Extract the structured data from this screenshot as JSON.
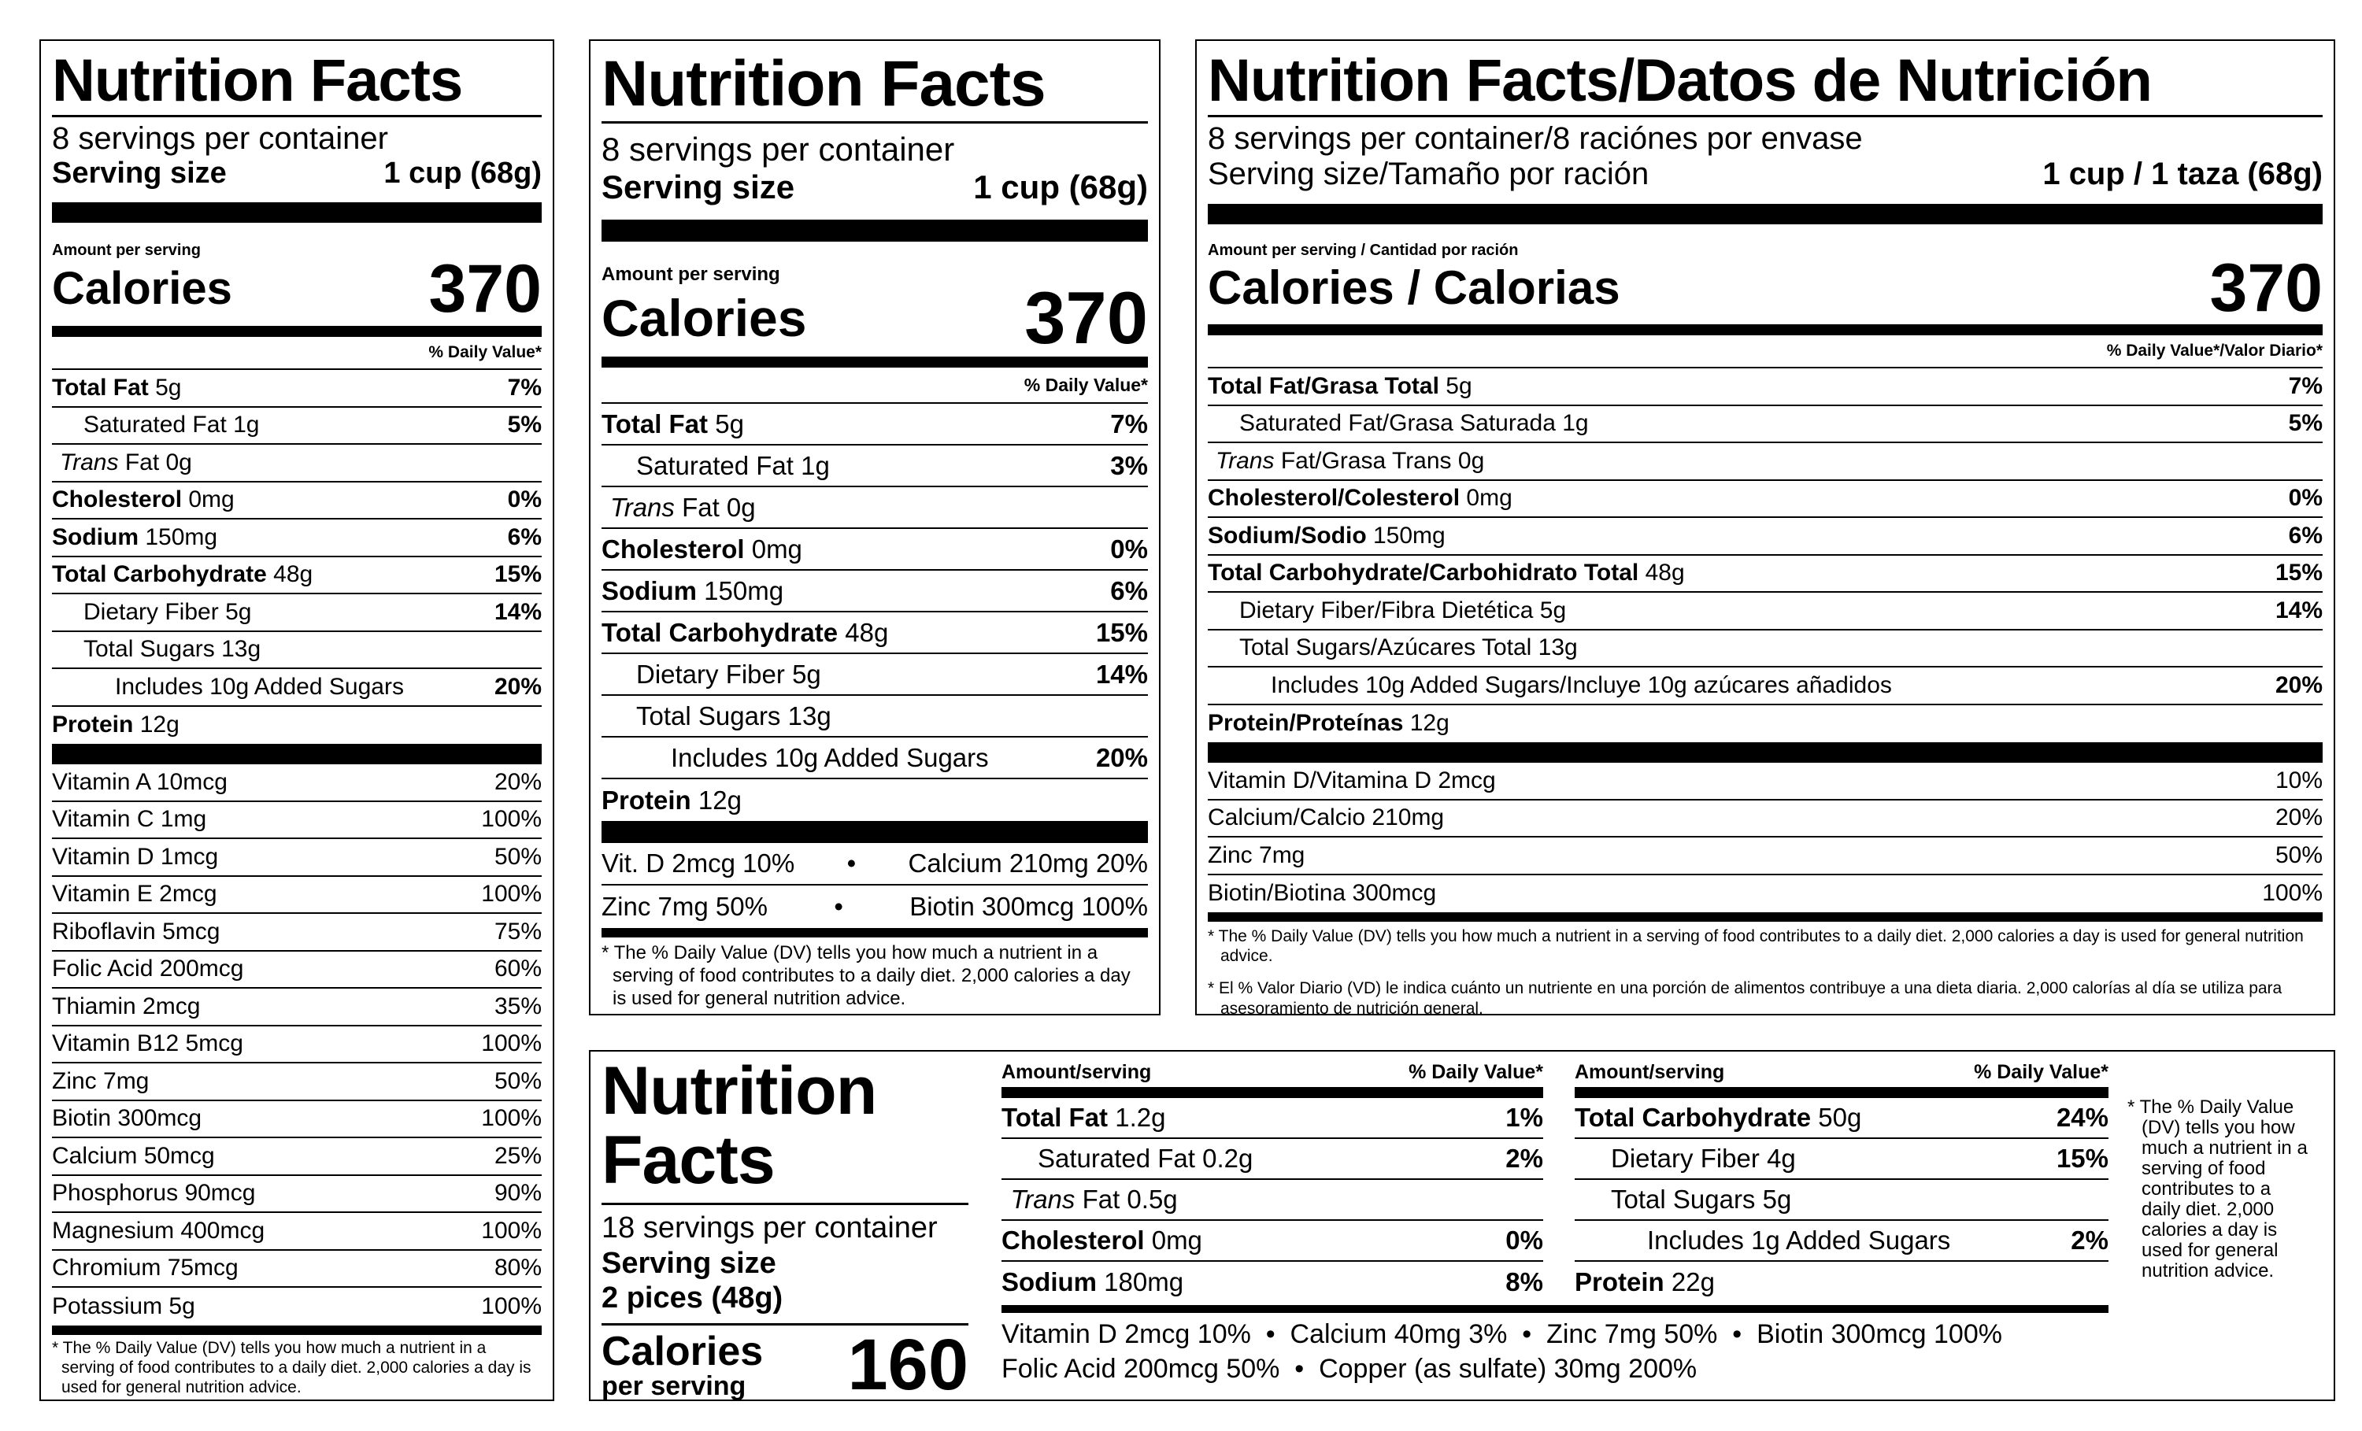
{
  "common": {
    "title": "Nutrition Facts",
    "servings": "8 servings per container",
    "serving_size_label": "Serving size",
    "serving_size_value": "1 cup (68g)",
    "amount_per_serving": "Amount per serving",
    "calories_label": "Calories",
    "calories_value": "370",
    "dv_header": "% Daily Value*",
    "footnote": "* The % Daily Value (DV) tells you how much a nutrient in a serving of food contributes to a daily diet. 2,000 calories a day is used for general nutrition advice."
  },
  "label1": {
    "nutrients": [
      {
        "name": "Total Fat",
        "amount": "5g",
        "dv": "7%",
        "style": "bold"
      },
      {
        "name": "Saturated Fat",
        "amount": "1g",
        "dv": "5%",
        "style": "indent"
      },
      {
        "name": "Trans",
        "amount": "Fat 0g",
        "dv": "",
        "style": "trans"
      },
      {
        "name": "Cholesterol",
        "amount": "0mg",
        "dv": "0%",
        "style": "bold"
      },
      {
        "name": "Sodium",
        "amount": "150mg",
        "dv": "6%",
        "style": "bold"
      },
      {
        "name": "Total Carbohydrate",
        "amount": "48g",
        "dv": "15%",
        "style": "bold"
      },
      {
        "name": "Dietary Fiber",
        "amount": "5g",
        "dv": "14%",
        "style": "indent"
      },
      {
        "name": "Total Sugars",
        "amount": "13g",
        "dv": "",
        "style": "indent"
      },
      {
        "name": "Includes 10g Added Sugars",
        "amount": "",
        "dv": "20%",
        "style": "indent2"
      },
      {
        "name": "Protein",
        "amount": "12g",
        "dv": "",
        "style": "bold-last"
      }
    ],
    "vitamins": [
      {
        "name": "Vitamin A 10mcg",
        "dv": "20%"
      },
      {
        "name": "Vitamin C 1mg",
        "dv": "100%"
      },
      {
        "name": "Vitamin D 1mcg",
        "dv": "50%"
      },
      {
        "name": "Vitamin E 2mcg",
        "dv": "100%"
      },
      {
        "name": "Riboflavin 5mcg",
        "dv": "75%"
      },
      {
        "name": "Folic Acid 200mcg",
        "dv": "60%"
      },
      {
        "name": "Thiamin 2mcg",
        "dv": "35%"
      },
      {
        "name": "Vitamin B12 5mcg",
        "dv": "100%"
      },
      {
        "name": "Zinc 7mg",
        "dv": "50%"
      },
      {
        "name": "Biotin 300mcg",
        "dv": "100%"
      },
      {
        "name": "Calcium 50mcg",
        "dv": "25%"
      },
      {
        "name": "Phosphorus 90mcg",
        "dv": "90%"
      },
      {
        "name": "Magnesium 400mcg",
        "dv": "100%"
      },
      {
        "name": "Chromium 75mcg",
        "dv": "80%"
      },
      {
        "name": "Potassium 5g",
        "dv": "100%"
      }
    ]
  },
  "label2": {
    "nutrients": [
      {
        "name": "Total Fat",
        "amount": "5g",
        "dv": "7%",
        "style": "bold"
      },
      {
        "name": "Saturated Fat",
        "amount": "1g",
        "dv": "3%",
        "style": "indent"
      },
      {
        "name": "Trans",
        "amount": "Fat 0g",
        "dv": "",
        "style": "trans"
      },
      {
        "name": "Cholesterol",
        "amount": "0mg",
        "dv": "0%",
        "style": "bold"
      },
      {
        "name": "Sodium",
        "amount": "150mg",
        "dv": "6%",
        "style": "bold"
      },
      {
        "name": "Total Carbohydrate",
        "amount": "48g",
        "dv": "15%",
        "style": "bold"
      },
      {
        "name": "Dietary Fiber",
        "amount": "5g",
        "dv": "14%",
        "style": "indent"
      },
      {
        "name": "Total Sugars",
        "amount": "13g",
        "dv": "",
        "style": "indent"
      },
      {
        "name": "Includes 10g Added Sugars",
        "amount": "",
        "dv": "20%",
        "style": "indent2"
      },
      {
        "name": "Protein",
        "amount": "12g",
        "dv": "",
        "style": "bold-last"
      }
    ],
    "vit_rows": [
      {
        "left": "Vit. D 2mcg 10%",
        "right": "Calcium 210mg 20%"
      },
      {
        "left": "Zinc 7mg 50%",
        "right": "Biotin 300mcg 100%"
      }
    ],
    "dot": "•"
  },
  "label3": {
    "title": "Nutrition Facts/Datos de Nutrición",
    "servings": "8 servings per container/8 raciónes por envase",
    "serving_size_label": "Serving size/Tamaño por ración",
    "serving_size_value": "1 cup / 1 taza (68g)",
    "amount_per_serving": "Amount per serving / Cantidad por ración",
    "calories_label": "Calories / Calorias",
    "calories_value": "370",
    "dv_header": "% Daily Value*/Valor Diario*",
    "nutrients": [
      {
        "name": "Total Fat/Grasa Total",
        "amount": "5g",
        "dv": "7%",
        "style": "bold"
      },
      {
        "name": "Saturated Fat/Grasa Saturada",
        "amount": "1g",
        "dv": "5%",
        "style": "indent"
      },
      {
        "name": "Trans",
        "amount": "Fat/Grasa Trans 0g",
        "dv": "",
        "style": "trans"
      },
      {
        "name": "Cholesterol/Colesterol",
        "amount": "0mg",
        "dv": "0%",
        "style": "bold"
      },
      {
        "name": "Sodium/Sodio",
        "amount": "150mg",
        "dv": "6%",
        "style": "bold"
      },
      {
        "name": "Total Carbohydrate/Carbohidrato Total",
        "amount": "48g",
        "dv": "15%",
        "style": "bold"
      },
      {
        "name": "Dietary Fiber/Fibra Dietética",
        "amount": "5g",
        "dv": "14%",
        "style": "indent"
      },
      {
        "name": "Total Sugars/Azúcares Total",
        "amount": "13g",
        "dv": "",
        "style": "indent"
      },
      {
        "name": "Includes 10g Added Sugars/Incluye 10g azúcares añadidos",
        "amount": "",
        "dv": "20%",
        "style": "indent2"
      },
      {
        "name": "Protein/Proteínas",
        "amount": "12g",
        "dv": "",
        "style": "bold-last"
      }
    ],
    "vitamins": [
      {
        "name": "Vitamin D/Vitamina D 2mcg",
        "dv": "10%"
      },
      {
        "name": "Calcium/Calcio 210mg",
        "dv": "20%"
      },
      {
        "name": "Zinc 7mg",
        "dv": "50%"
      },
      {
        "name": "Biotin/Biotina 300mcg",
        "dv": "100%"
      }
    ],
    "footnote_es": "* El % Valor Diario (VD) le indica cuánto un nutriente en una porción de alimentos contribuye a una dieta diaria. 2,000 calorías al día se utiliza para asesoramiento de nutrición general."
  },
  "label4": {
    "title_line1": "Nutrition",
    "title_line2": "Facts",
    "servings": "18 servings per container",
    "serving_size_label": "Serving size",
    "serving_size_value": "2 pices (48g)",
    "calories_label": "Calories",
    "calories_sub": "per serving",
    "calories_value": "160",
    "col_header_left": "Amount/serving",
    "col_header_right": "% Daily Value*",
    "col1": [
      {
        "name": "Total Fat",
        "amount": "1.2g",
        "dv": "1%",
        "style": "bold"
      },
      {
        "name": "Saturated Fat",
        "amount": "0.2g",
        "dv": "2%",
        "style": "indent"
      },
      {
        "name": "Trans",
        "amount": "Fat 0.5g",
        "dv": "",
        "style": "trans"
      },
      {
        "name": "Cholesterol",
        "amount": "0mg",
        "dv": "0%",
        "style": "bold"
      },
      {
        "name": "Sodium",
        "amount": "180mg",
        "dv": "8%",
        "style": "bold-last"
      }
    ],
    "col2": [
      {
        "name": "Total Carbohydrate",
        "amount": "50g",
        "dv": "24%",
        "style": "bold"
      },
      {
        "name": "Dietary Fiber",
        "amount": "4g",
        "dv": "15%",
        "style": "indent"
      },
      {
        "name": "Total Sugars",
        "amount": "5g",
        "dv": "",
        "style": "indent"
      },
      {
        "name": "Includes 1g Added Sugars",
        "amount": "",
        "dv": "2%",
        "style": "indent2"
      },
      {
        "name": "Protein",
        "amount": "22g",
        "dv": "",
        "style": "bold-last"
      }
    ],
    "vit_line1": "Vitamin D 2mcg 10%  •  Calcium 40mg 3%  •  Zinc 7mg 50%  •  Biotin 300mcg 100%",
    "vit_line2": "Folic Acid 200mcg 50%  •  Copper (as sulfate) 30mg 200%",
    "footnote": "* The % Daily Value (DV) tells you how much a nutrient in a serving of food contributes to a daily diet. 2,000 calories a day is used for general nutrition advice."
  }
}
